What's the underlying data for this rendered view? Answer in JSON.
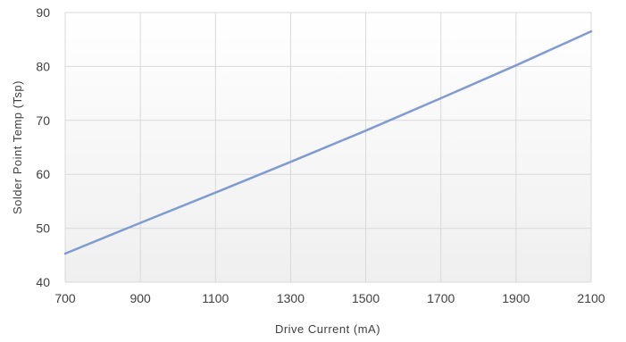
{
  "chart_data": {
    "type": "line",
    "title": "",
    "xlabel": "Drive Current (mA)",
    "ylabel": "Solder Point Temp (Tsp)",
    "xlim": [
      700,
      2100
    ],
    "ylim": [
      40,
      90
    ],
    "x_ticks": [
      "700",
      "900",
      "1100",
      "1300",
      "1500",
      "1700",
      "1900",
      "2100"
    ],
    "y_ticks": [
      "40",
      "50",
      "60",
      "70",
      "80",
      "90"
    ],
    "grid": true,
    "legend": "none",
    "series": [
      {
        "x": [
          700,
          900,
          1100,
          1300,
          1500,
          1700,
          1900,
          2100
        ],
        "y": [
          45.3,
          51.0,
          56.6,
          62.3,
          68.1,
          74.1,
          80.2,
          86.5
        ],
        "color": "#7F9BD1"
      }
    ],
    "colors": {
      "plot_background_top": "#ffffff",
      "plot_background_bottom": "#efefef",
      "grid": "#d9d9d9",
      "text": "#404040"
    }
  }
}
